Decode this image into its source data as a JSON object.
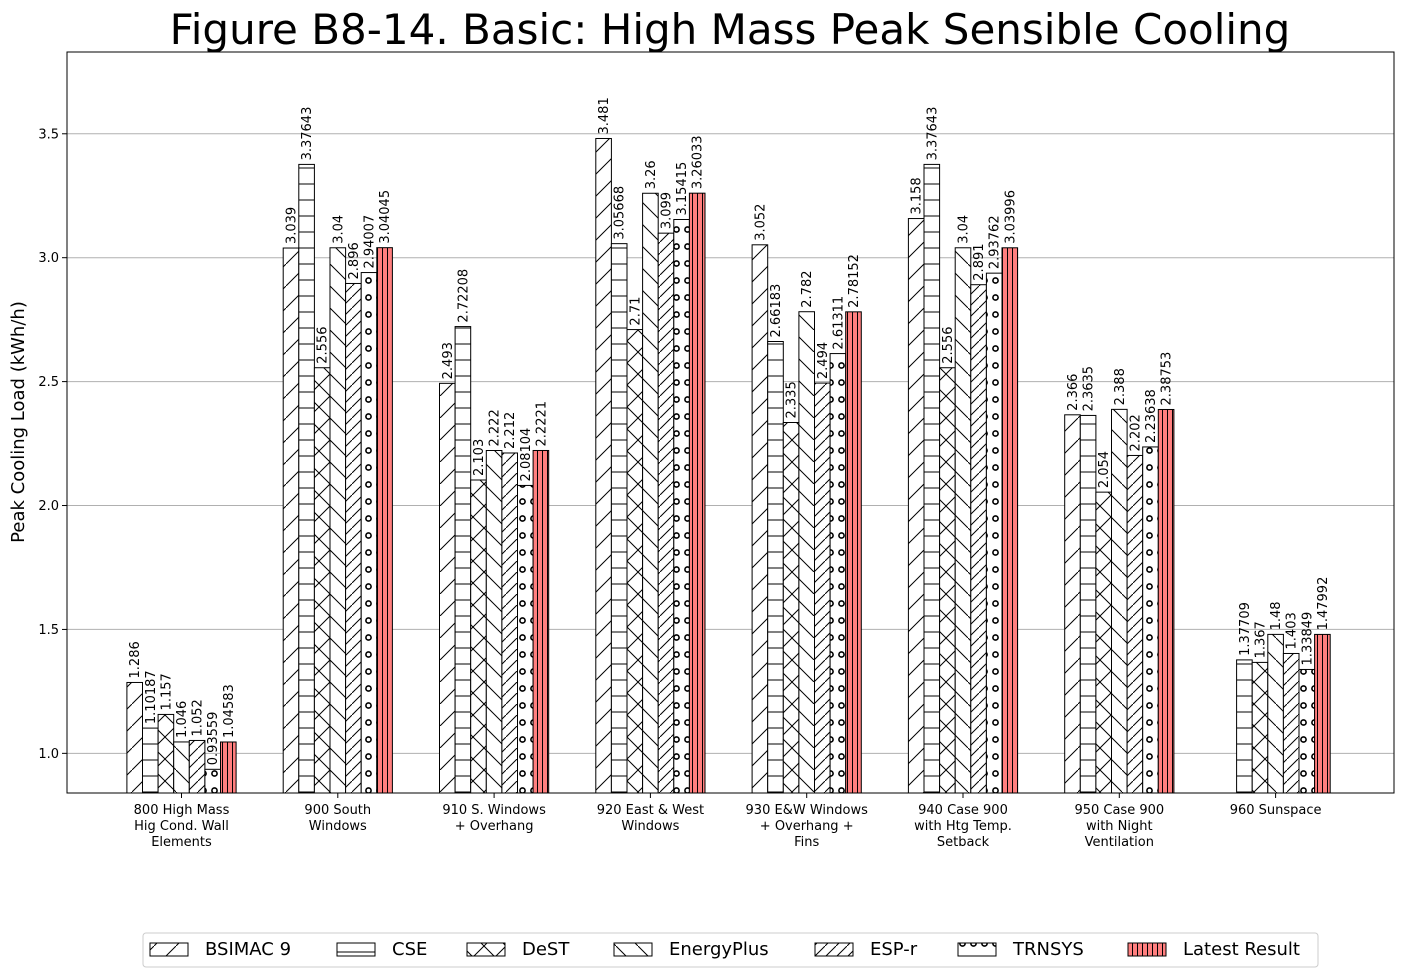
{
  "chart_data": {
    "type": "bar",
    "title": "Figure B8-14.  Basic: High Mass Peak Sensible Cooling",
    "xlabel": "",
    "ylabel": "Peak Cooling Load (kWh/h)",
    "ylim": [
      0.84,
      3.83
    ],
    "yticks": [
      "1.0",
      "1.5",
      "2.0",
      "2.5",
      "3.0",
      "3.5"
    ],
    "grid": "horizontal",
    "legend_position": "bottom-center",
    "categories": [
      [
        "800 High Mass",
        "Hig Cond. Wall",
        "Elements"
      ],
      [
        "900 South",
        "Windows"
      ],
      [
        "910 S. Windows",
        "+ Overhang"
      ],
      [
        "920 East & West",
        "Windows"
      ],
      [
        "930 E&W Windows",
        "+ Overhang +",
        "Fins"
      ],
      [
        "940 Case 900",
        "with Htg Temp.",
        "Setback"
      ],
      [
        "950 Case 900",
        "with Night",
        "Ventilation"
      ],
      [
        "960 Sunspace"
      ]
    ],
    "series": [
      {
        "name": "BSIMAC 9",
        "pattern": "forward-diagonal",
        "color": "#ffffff",
        "values": [
          1.286,
          3.039,
          2.493,
          3.481,
          3.052,
          3.158,
          2.366,
          null
        ],
        "labels": [
          "1.286",
          "3.039",
          "2.493",
          "3.481",
          "3.052",
          "3.158",
          "2.366",
          ""
        ]
      },
      {
        "name": "CSE",
        "pattern": "horizontal",
        "color": "#ffffff",
        "values": [
          1.10187,
          3.37643,
          2.72208,
          3.05668,
          2.66183,
          3.37643,
          2.3635,
          1.37709
        ],
        "labels": [
          "1.10187",
          "3.37643",
          "2.72208",
          "3.05668",
          "2.66183",
          "3.37643",
          "2.3635",
          "1.37709"
        ]
      },
      {
        "name": "DeST",
        "pattern": "cross",
        "color": "#ffffff",
        "values": [
          1.157,
          2.556,
          2.103,
          2.71,
          2.335,
          2.556,
          2.054,
          1.367
        ],
        "labels": [
          "1.157",
          "2.556",
          "2.103",
          "2.71",
          "2.335",
          "2.556",
          "2.054",
          "1.367"
        ]
      },
      {
        "name": "EnergyPlus",
        "pattern": "back-diagonal",
        "color": "#ffffff",
        "values": [
          1.046,
          3.04,
          2.222,
          3.26,
          2.782,
          3.04,
          2.388,
          1.48
        ],
        "labels": [
          "1.046",
          "3.04",
          "2.222",
          "3.26",
          "2.782",
          "3.04",
          "2.388",
          "1.48"
        ]
      },
      {
        "name": "ESP-r",
        "pattern": "dense-forward-diagonal",
        "color": "#ffffff",
        "values": [
          1.052,
          2.896,
          2.212,
          3.099,
          2.494,
          2.891,
          2.202,
          1.403
        ],
        "labels": [
          "1.052",
          "2.896",
          "2.212",
          "3.099",
          "2.494",
          "2.891",
          "2.202",
          "1.403"
        ]
      },
      {
        "name": "TRNSYS",
        "pattern": "circles",
        "color": "#ffffff",
        "values": [
          0.93559,
          2.94007,
          2.08104,
          3.15415,
          2.61311,
          2.93762,
          2.23638,
          1.33849
        ],
        "labels": [
          "0.93559",
          "2.94007",
          "2.08104",
          "3.15415",
          "2.61311",
          "2.93762",
          "2.23638",
          "1.33849"
        ]
      },
      {
        "name": "Latest Result",
        "pattern": "vertical",
        "color": "#ff7f7f",
        "values": [
          1.04583,
          3.04045,
          2.2221,
          3.26033,
          2.78152,
          3.03996,
          2.38753,
          1.47992
        ],
        "labels": [
          "1.04583",
          "3.04045",
          "2.2221",
          "3.26033",
          "2.78152",
          "3.03996",
          "2.38753",
          "1.47992"
        ]
      }
    ]
  }
}
